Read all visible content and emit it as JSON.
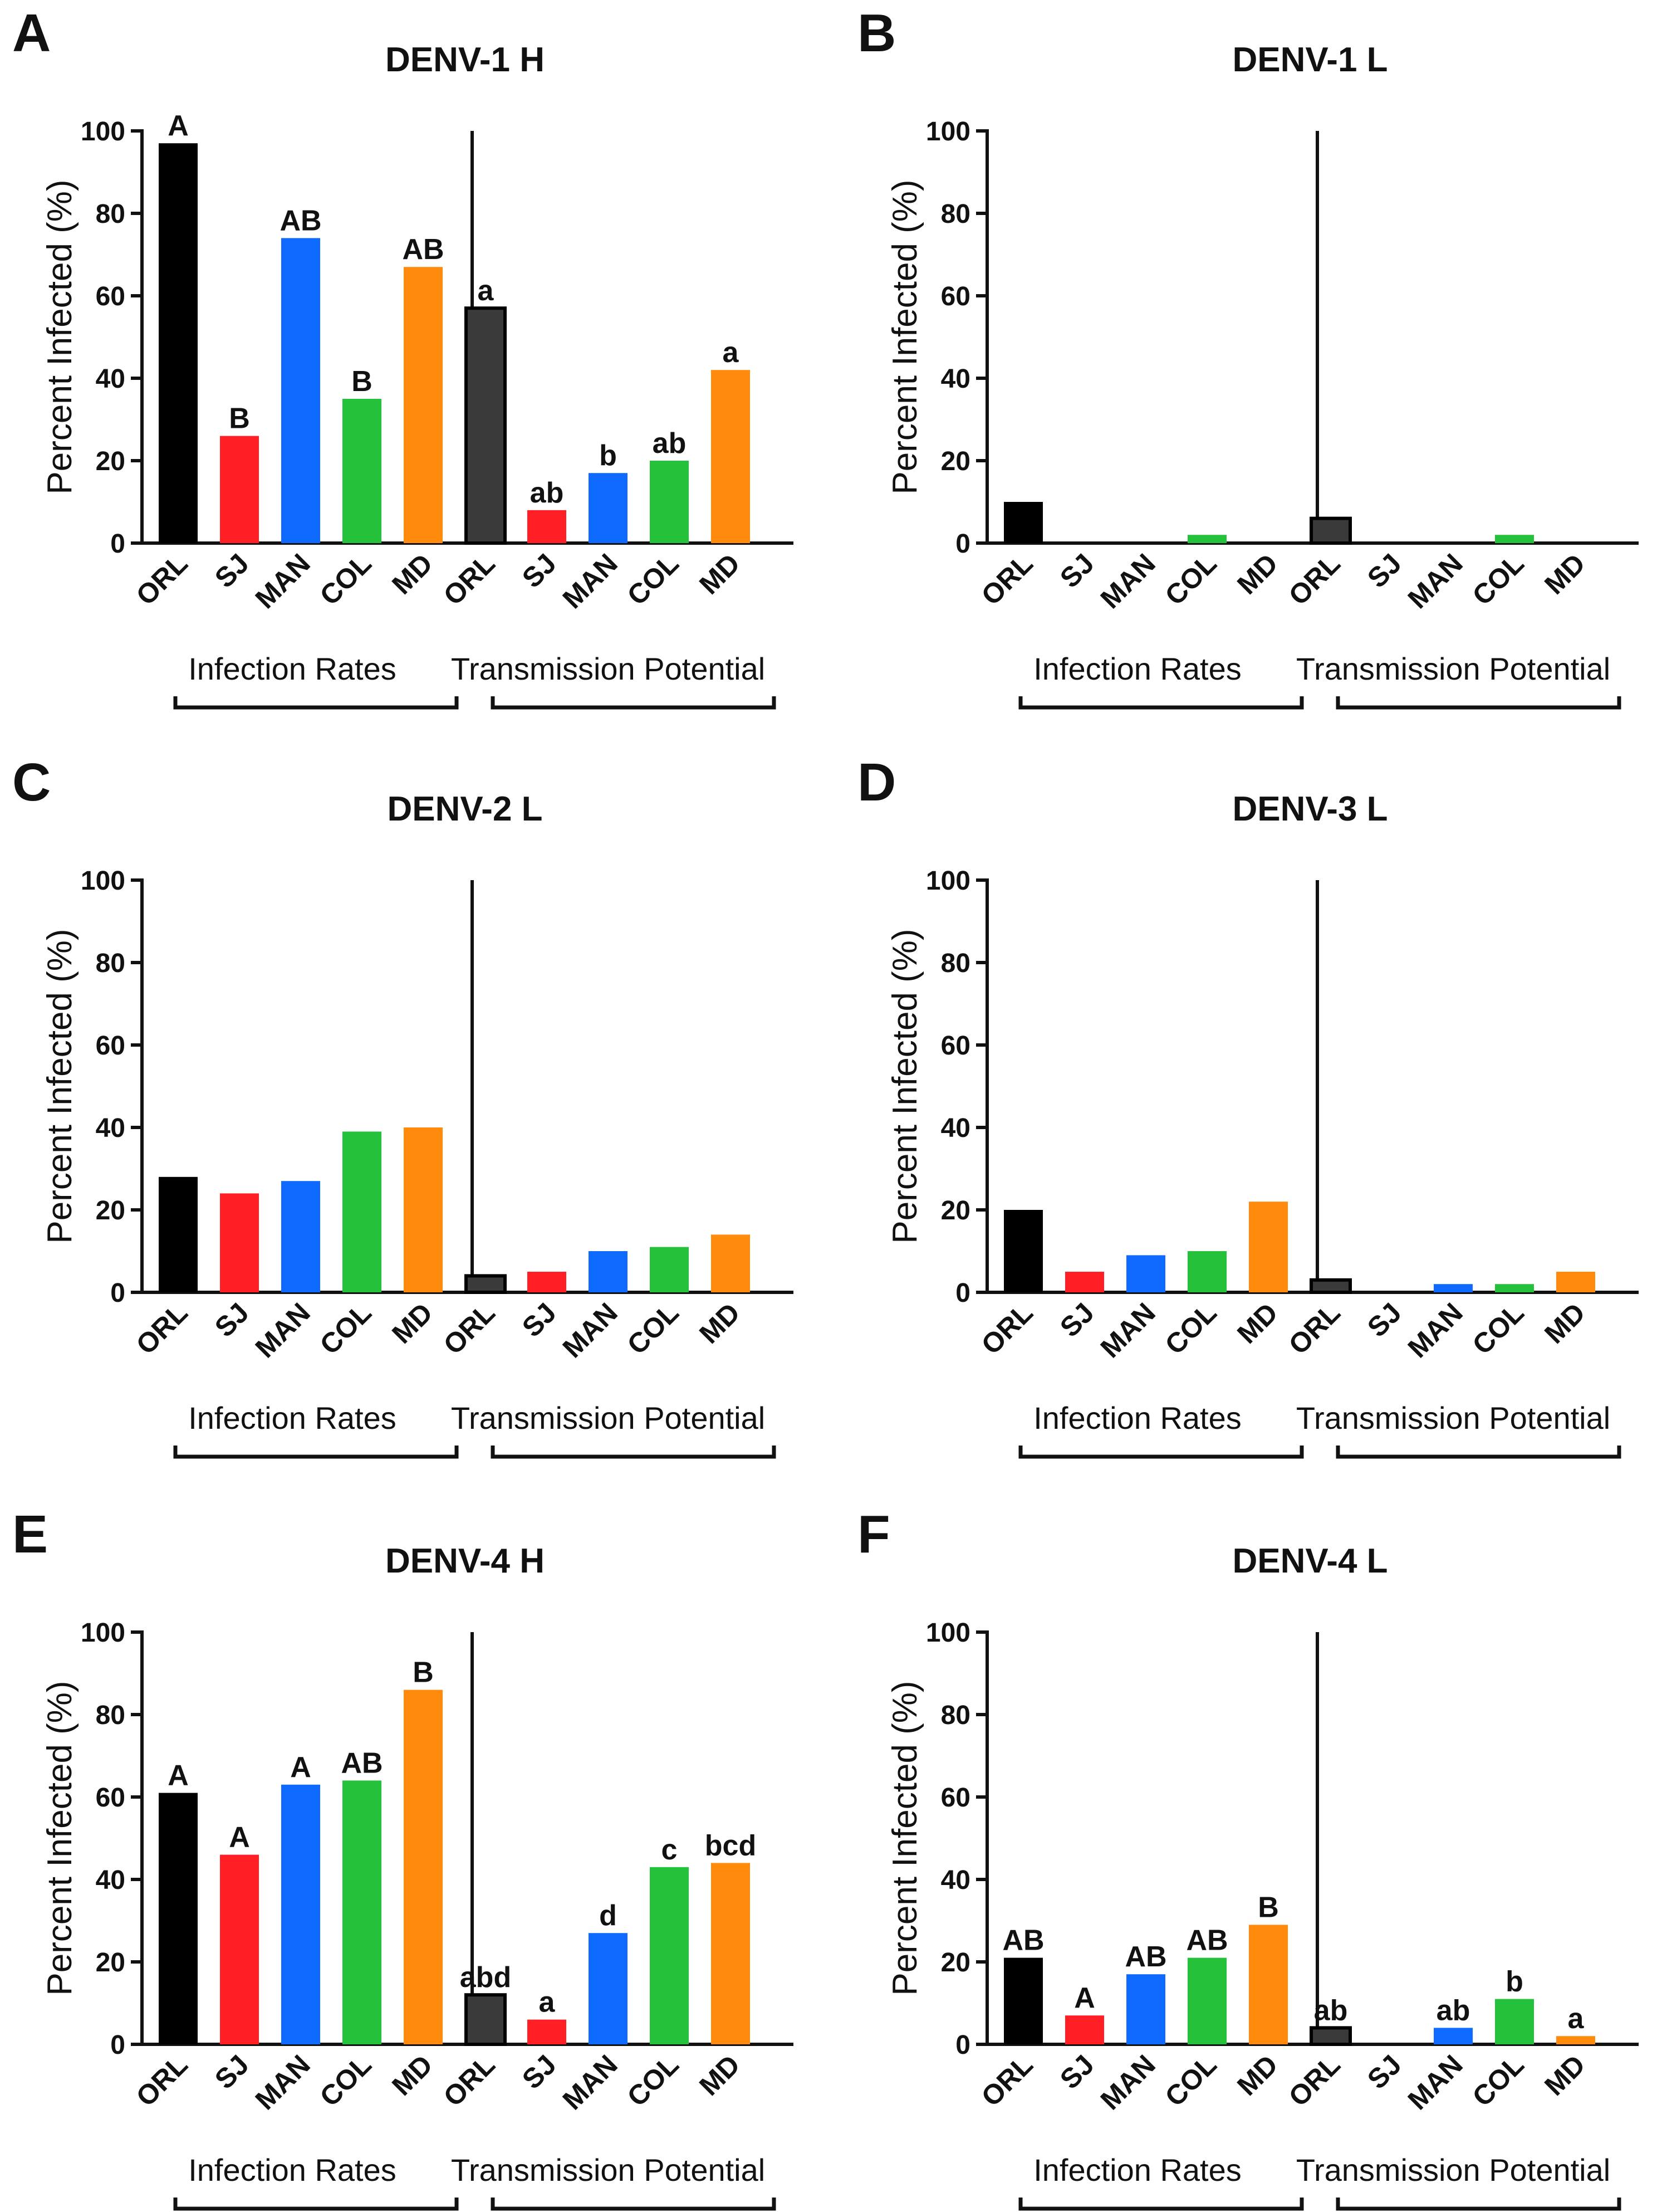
{
  "colors": {
    "ORL": "#000000",
    "SJ": "#ff1f24",
    "MAN": "#0f6bff",
    "COL": "#23c23a",
    "MD": "#ff8a0c",
    "ORL_TP": "#3a3a3a"
  },
  "chart_data": [
    {
      "type": "bar",
      "panel": "A",
      "title": "DENV-1 H",
      "ylabel": "Percent Infected (%)",
      "ylim": [
        0,
        100
      ],
      "yticks": [
        0,
        20,
        40,
        60,
        80,
        100
      ],
      "categories": [
        "ORL",
        "SJ",
        "MAN",
        "COL",
        "MD"
      ],
      "groups": [
        {
          "name": "Infection Rates",
          "values": [
            97,
            26,
            74,
            35,
            67
          ],
          "labels": [
            "A",
            "B",
            "AB",
            "B",
            "AB"
          ]
        },
        {
          "name": "Transmission Potential",
          "values": [
            57,
            8,
            17,
            20,
            42
          ],
          "labels": [
            "a",
            "ab",
            "b",
            "ab",
            "a"
          ]
        }
      ]
    },
    {
      "type": "bar",
      "panel": "B",
      "title": "DENV-1 L",
      "ylabel": "Percent Infected (%)",
      "ylim": [
        0,
        100
      ],
      "yticks": [
        0,
        20,
        40,
        60,
        80,
        100
      ],
      "categories": [
        "ORL",
        "SJ",
        "MAN",
        "COL",
        "MD"
      ],
      "groups": [
        {
          "name": "Infection Rates",
          "values": [
            10,
            0,
            0,
            2,
            0
          ],
          "labels": [
            "",
            "",
            "",
            "",
            ""
          ]
        },
        {
          "name": "Transmission Potential",
          "values": [
            6,
            0,
            0,
            2,
            0
          ],
          "labels": [
            "",
            "",
            "",
            "",
            ""
          ]
        }
      ]
    },
    {
      "type": "bar",
      "panel": "C",
      "title": "DENV-2 L",
      "ylabel": "Percent Infected (%)",
      "ylim": [
        0,
        100
      ],
      "yticks": [
        0,
        20,
        40,
        60,
        80,
        100
      ],
      "categories": [
        "ORL",
        "SJ",
        "MAN",
        "COL",
        "MD"
      ],
      "groups": [
        {
          "name": "Infection Rates",
          "values": [
            28,
            24,
            27,
            39,
            40
          ],
          "labels": [
            "",
            "",
            "",
            "",
            ""
          ]
        },
        {
          "name": "Transmission Potential",
          "values": [
            4,
            5,
            10,
            11,
            14
          ],
          "labels": [
            "",
            "",
            "",
            "",
            ""
          ]
        }
      ]
    },
    {
      "type": "bar",
      "panel": "D",
      "title": "DENV-3 L",
      "ylabel": "Percent Infected (%)",
      "ylim": [
        0,
        100
      ],
      "yticks": [
        0,
        20,
        40,
        60,
        80,
        100
      ],
      "categories": [
        "ORL",
        "SJ",
        "MAN",
        "COL",
        "MD"
      ],
      "groups": [
        {
          "name": "Infection Rates",
          "values": [
            20,
            5,
            9,
            10,
            22
          ],
          "labels": [
            "",
            "",
            "",
            "",
            ""
          ]
        },
        {
          "name": "Transmission Potential",
          "values": [
            3,
            0,
            2,
            2,
            5
          ],
          "labels": [
            "",
            "",
            "",
            "",
            ""
          ]
        }
      ]
    },
    {
      "type": "bar",
      "panel": "E",
      "title": "DENV-4 H",
      "ylabel": "Percent Infected (%)",
      "ylim": [
        0,
        100
      ],
      "yticks": [
        0,
        20,
        40,
        60,
        80,
        100
      ],
      "categories": [
        "ORL",
        "SJ",
        "MAN",
        "COL",
        "MD"
      ],
      "groups": [
        {
          "name": "Infection Rates",
          "values": [
            61,
            46,
            63,
            64,
            86
          ],
          "labels": [
            "A",
            "A",
            "A",
            "AB",
            "B"
          ]
        },
        {
          "name": "Transmission Potential",
          "values": [
            12,
            6,
            27,
            43,
            44
          ],
          "labels": [
            "abd",
            "a",
            "d",
            "c",
            "bcd"
          ]
        }
      ]
    },
    {
      "type": "bar",
      "panel": "F",
      "title": "DENV-4 L",
      "ylabel": "Percent Infected (%)",
      "ylim": [
        0,
        100
      ],
      "yticks": [
        0,
        20,
        40,
        60,
        80,
        100
      ],
      "categories": [
        "ORL",
        "SJ",
        "MAN",
        "COL",
        "MD"
      ],
      "groups": [
        {
          "name": "Infection Rates",
          "values": [
            21,
            7,
            17,
            21,
            29
          ],
          "labels": [
            "AB",
            "A",
            "AB",
            "AB",
            "B"
          ]
        },
        {
          "name": "Transmission Potential",
          "values": [
            4,
            0,
            4,
            11,
            2
          ],
          "labels": [
            "ab",
            "",
            "ab",
            "b",
            "a"
          ]
        }
      ]
    }
  ]
}
